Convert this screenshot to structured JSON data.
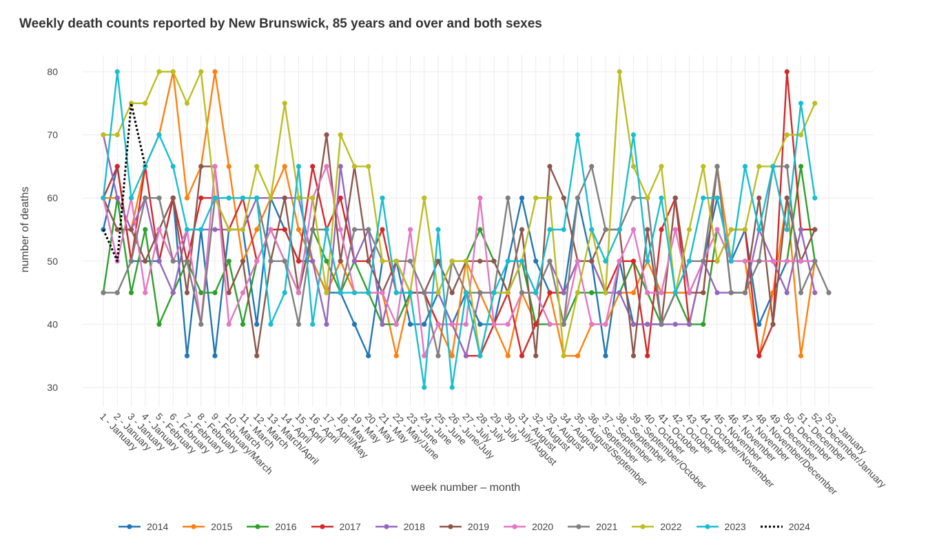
{
  "chart_data": {
    "type": "line",
    "title": "Weekly death counts reported by New Brunswick, 85 years and over and both sexes",
    "xlabel": "week number – month",
    "ylabel": "number of deaths",
    "ylim": [
      27,
      83
    ],
    "yticks": [
      30,
      40,
      50,
      60,
      70,
      80
    ],
    "grid": true,
    "legend_position": "bottom",
    "categories": [
      "1 - January",
      "2 - January",
      "3 - January",
      "4 - January",
      "5 - February",
      "6 - February",
      "7 - February",
      "8 - February",
      "9 - February/March",
      "10 - March",
      "11 - March",
      "12 - March",
      "13 - March/April",
      "14 - April",
      "15 - April",
      "16 - April",
      "17 - April/May",
      "18 - May",
      "19 - May",
      "20 - May",
      "21 - May",
      "22 - May/June",
      "23 - June",
      "24 - June",
      "25 - June",
      "26 - June/July",
      "27 - July",
      "28 - July",
      "29 - July",
      "30 - July/August",
      "31 - August",
      "32 - August",
      "33 - August",
      "34 - August",
      "35 - August/September",
      "36 - September",
      "37 - September",
      "38 - September",
      "39 - September/October",
      "40 - October",
      "41 - October",
      "42 - October",
      "43 - October",
      "44 - October/November",
      "45 - November",
      "46 - November",
      "47 - November",
      "48 - November/December",
      "49 - December",
      "50 - December",
      "51 - December",
      "52 - December/January",
      "53 - January"
    ],
    "series": [
      {
        "name": "2014",
        "color": "#1f77b4",
        "dash": false,
        "values": [
          55,
          65,
          50,
          50,
          50,
          60,
          35,
          55,
          35,
          55,
          55,
          40,
          60,
          55,
          50,
          50,
          45,
          45,
          40,
          35,
          50,
          50,
          40,
          40,
          45,
          40,
          45,
          40,
          40,
          50,
          60,
          50,
          45,
          45,
          60,
          50,
          35,
          50,
          40,
          40,
          40,
          45,
          45,
          50,
          60,
          50,
          55,
          40,
          45,
          50,
          50,
          50,
          null
        ]
      },
      {
        "name": "2015",
        "color": "#ff7f0e",
        "dash": false,
        "values": [
          60,
          60,
          55,
          65,
          70,
          80,
          60,
          65,
          80,
          65,
          50,
          55,
          60,
          65,
          55,
          50,
          45,
          50,
          45,
          45,
          45,
          35,
          45,
          45,
          40,
          35,
          50,
          45,
          40,
          35,
          45,
          40,
          45,
          35,
          35,
          40,
          40,
          45,
          45,
          50,
          45,
          45,
          45,
          45,
          65,
          50,
          50,
          35,
          45,
          60,
          35,
          50,
          null
        ]
      },
      {
        "name": "2016",
        "color": "#2ca02c",
        "dash": false,
        "values": [
          45,
          60,
          45,
          55,
          40,
          45,
          50,
          45,
          45,
          50,
          40,
          50,
          55,
          50,
          45,
          55,
          50,
          45,
          50,
          45,
          40,
          40,
          45,
          45,
          45,
          50,
          50,
          55,
          50,
          45,
          50,
          40,
          40,
          40,
          45,
          45,
          45,
          45,
          50,
          45,
          40,
          45,
          40,
          40,
          55,
          50,
          50,
          50,
          50,
          50,
          65,
          50,
          null
        ]
      },
      {
        "name": "2017",
        "color": "#d62728",
        "dash": false,
        "values": [
          60,
          65,
          50,
          65,
          50,
          60,
          50,
          60,
          60,
          55,
          60,
          50,
          55,
          55,
          50,
          65,
          55,
          60,
          50,
          50,
          55,
          45,
          45,
          45,
          40,
          40,
          35,
          35,
          40,
          45,
          35,
          40,
          45,
          45,
          50,
          50,
          45,
          50,
          50,
          35,
          55,
          60,
          40,
          50,
          50,
          55,
          55,
          35,
          40,
          80,
          55,
          55,
          null
        ]
      },
      {
        "name": "2018",
        "color": "#9467bd",
        "dash": false,
        "values": [
          70,
          60,
          55,
          60,
          50,
          45,
          55,
          55,
          55,
          55,
          55,
          60,
          60,
          60,
          60,
          50,
          40,
          65,
          50,
          55,
          40,
          50,
          45,
          45,
          45,
          40,
          35,
          45,
          45,
          45,
          50,
          45,
          50,
          45,
          50,
          50,
          45,
          45,
          40,
          40,
          40,
          40,
          40,
          50,
          45,
          45,
          45,
          55,
          50,
          45,
          55,
          45,
          null
        ]
      },
      {
        "name": "2019",
        "color": "#8c564b",
        "dash": false,
        "values": [
          60,
          55,
          55,
          50,
          55,
          60,
          45,
          65,
          65,
          45,
          50,
          35,
          50,
          60,
          45,
          55,
          70,
          50,
          65,
          50,
          45,
          50,
          45,
          45,
          50,
          45,
          50,
          50,
          50,
          45,
          55,
          35,
          65,
          60,
          50,
          50,
          55,
          55,
          35,
          55,
          40,
          60,
          45,
          45,
          65,
          45,
          45,
          60,
          40,
          60,
          50,
          55,
          null
        ]
      },
      {
        "name": "2020",
        "color": "#e377c2",
        "dash": false,
        "values": [
          60,
          50,
          60,
          45,
          55,
          50,
          55,
          40,
          65,
          40,
          45,
          50,
          55,
          50,
          45,
          60,
          65,
          55,
          45,
          45,
          45,
          40,
          55,
          35,
          40,
          40,
          40,
          60,
          40,
          40,
          45,
          45,
          40,
          40,
          50,
          40,
          40,
          50,
          55,
          45,
          45,
          55,
          45,
          50,
          55,
          50,
          50,
          50,
          50,
          50,
          50,
          50,
          null
        ]
      },
      {
        "name": "2021",
        "color": "#7f7f7f",
        "dash": false,
        "values": [
          45,
          45,
          50,
          60,
          60,
          50,
          50,
          40,
          60,
          60,
          60,
          60,
          50,
          50,
          40,
          55,
          55,
          45,
          55,
          55,
          50,
          50,
          50,
          45,
          35,
          50,
          45,
          45,
          45,
          60,
          45,
          45,
          50,
          40,
          60,
          65,
          55,
          55,
          60,
          60,
          40,
          45,
          50,
          50,
          65,
          45,
          45,
          50,
          65,
          65,
          45,
          50,
          45
        ]
      },
      {
        "name": "2022",
        "color": "#bcbd22",
        "dash": false,
        "values": [
          70,
          70,
          75,
          75,
          80,
          80,
          75,
          80,
          60,
          55,
          55,
          65,
          60,
          75,
          60,
          60,
          45,
          70,
          65,
          65,
          50,
          50,
          45,
          60,
          45,
          50,
          50,
          35,
          45,
          45,
          50,
          60,
          60,
          35,
          45,
          55,
          45,
          80,
          65,
          60,
          65,
          45,
          55,
          65,
          50,
          55,
          55,
          65,
          65,
          70,
          70,
          75,
          null
        ]
      },
      {
        "name": "2023",
        "color": "#17becf",
        "dash": false,
        "values": [
          60,
          80,
          60,
          65,
          70,
          65,
          55,
          55,
          60,
          60,
          60,
          60,
          40,
          45,
          65,
          40,
          55,
          45,
          45,
          45,
          60,
          45,
          45,
          30,
          55,
          30,
          45,
          35,
          45,
          50,
          50,
          45,
          55,
          55,
          70,
          55,
          50,
          55,
          70,
          50,
          60,
          45,
          50,
          60,
          60,
          50,
          65,
          55,
          65,
          55,
          75,
          60,
          null
        ]
      },
      {
        "name": "2024",
        "color": "#000000",
        "dash": true,
        "values": [
          55,
          50,
          75,
          65,
          null,
          null,
          null,
          null,
          null,
          null,
          null,
          null,
          null,
          null,
          null,
          null,
          null,
          null,
          null,
          null,
          null,
          null,
          null,
          null,
          null,
          null,
          null,
          null,
          null,
          null,
          null,
          null,
          null,
          null,
          null,
          null,
          null,
          null,
          null,
          null,
          null,
          null,
          null,
          null,
          null,
          null,
          null,
          null,
          null,
          null,
          null,
          null,
          null
        ]
      }
    ]
  }
}
